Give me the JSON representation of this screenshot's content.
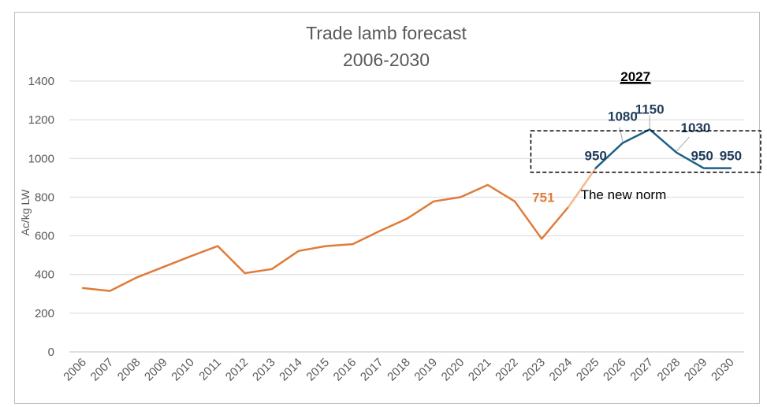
{
  "chart_data": {
    "type": "line",
    "title": "Trade lamb forecast",
    "subtitle": "2006-2030",
    "ylabel": "Ac/kg LW",
    "xlabel": "",
    "ylim": [
      0,
      1400
    ],
    "yticks": [
      0,
      200,
      400,
      600,
      800,
      1000,
      1200,
      1400
    ],
    "grid": true,
    "categories": [
      "2006",
      "2007",
      "2008",
      "2009",
      "2010",
      "2011",
      "2012",
      "2013",
      "2014",
      "2015",
      "2016",
      "2017",
      "2018",
      "2019",
      "2020",
      "2021",
      "2022",
      "2023",
      "2024",
      "2025",
      "2026",
      "2027",
      "2028",
      "2029",
      "2030"
    ],
    "series": [
      {
        "color": "#e07b39",
        "x": [
          "2006",
          "2007",
          "2008",
          "2009",
          "2010",
          "2011",
          "2012",
          "2013",
          "2014",
          "2015",
          "2016",
          "2017",
          "2018",
          "2019",
          "2020",
          "2021",
          "2022",
          "2023",
          "2024"
        ],
        "values": [
          330,
          315,
          385,
          440,
          495,
          547,
          407,
          428,
          522,
          547,
          557,
          625,
          688,
          778,
          800,
          863,
          778,
          585,
          751
        ]
      },
      {
        "color": "#f5b78e",
        "x": [
          "2024",
          "2025"
        ],
        "values": [
          751,
          950
        ]
      },
      {
        "color": "#1f5f87",
        "x": [
          "2025",
          "2026",
          "2027",
          "2028",
          "2029",
          "2030"
        ],
        "values": [
          950,
          1080,
          1150,
          1030,
          950,
          950
        ]
      }
    ],
    "data_labels": [
      {
        "text": "751",
        "x": "2024",
        "value": 751,
        "color": "#e07b39"
      },
      {
        "text": "950",
        "x": "2025",
        "value": 950,
        "color": "#1f3c5a"
      },
      {
        "text": "1080",
        "x": "2026",
        "value": 1080,
        "color": "#1f3c5a"
      },
      {
        "text": "1150",
        "x": "2027",
        "value": 1150,
        "color": "#1f3c5a"
      },
      {
        "text": "1030",
        "x": "2028",
        "value": 1030,
        "color": "#1f3c5a"
      },
      {
        "text": "950",
        "x": "2029",
        "value": 950,
        "color": "#1f3c5a"
      },
      {
        "text": "950",
        "x": "2030",
        "value": 950,
        "color": "#1f3c5a"
      }
    ],
    "annotations": {
      "peak_year_label": "2027",
      "box_label": "The new norm"
    }
  }
}
